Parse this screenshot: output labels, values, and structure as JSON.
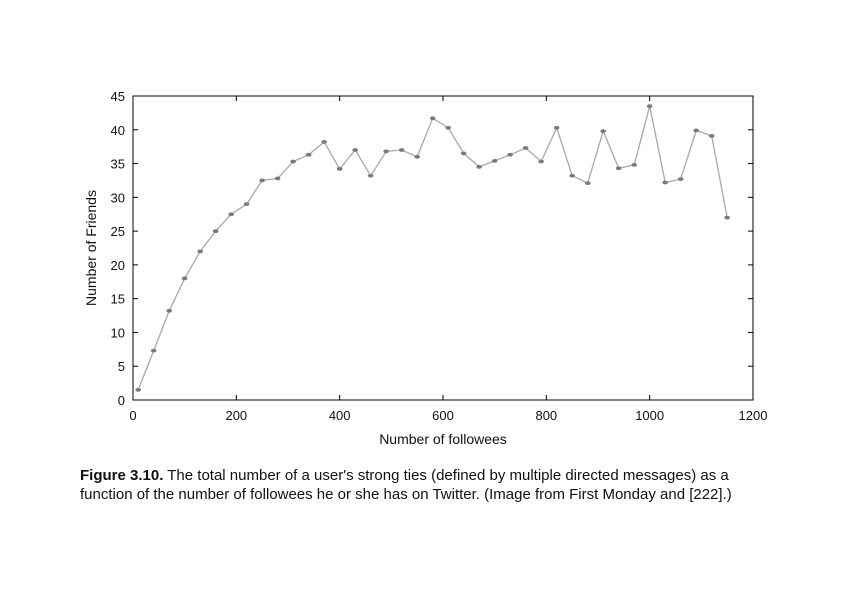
{
  "chart_data": {
    "type": "line",
    "xlabel": "Number of followees",
    "ylabel": "Number of Friends",
    "xlim": [
      0,
      1200
    ],
    "ylim": [
      0,
      45
    ],
    "xticks": [
      0,
      200,
      400,
      600,
      800,
      1000,
      1200
    ],
    "yticks": [
      0,
      5,
      10,
      15,
      20,
      25,
      30,
      35,
      40,
      45
    ],
    "grid": false,
    "series": [
      {
        "color": "#a8a8a8",
        "marker_color": "#7a7a7a",
        "x": [
          10,
          40,
          70,
          100,
          130,
          160,
          190,
          220,
          250,
          280,
          310,
          340,
          370,
          400,
          430,
          460,
          490,
          520,
          550,
          580,
          610,
          640,
          670,
          700,
          730,
          760,
          790,
          820,
          850,
          880,
          910,
          940,
          970,
          1000,
          1030,
          1060,
          1090,
          1120,
          1150
        ],
        "y": [
          1.5,
          7.3,
          13.2,
          18,
          22,
          25,
          27.5,
          29,
          32.5,
          32.8,
          35.3,
          36.3,
          38.2,
          34.2,
          37,
          33.2,
          36.8,
          37,
          36,
          41.7,
          40.3,
          36.5,
          34.5,
          35.4,
          36.3,
          37.3,
          35.3,
          40.3,
          33.2,
          32.1,
          39.8,
          34.3,
          34.8,
          43.5,
          32.2,
          32.7,
          39.9,
          39.1,
          27
        ]
      }
    ]
  },
  "caption": {
    "label": "Figure 3.10.",
    "text": " The total number of a user's strong ties (defined by multiple directed messages) as a function of the number of followees he or she has on Twitter. (Image from First Monday and [222].)"
  }
}
